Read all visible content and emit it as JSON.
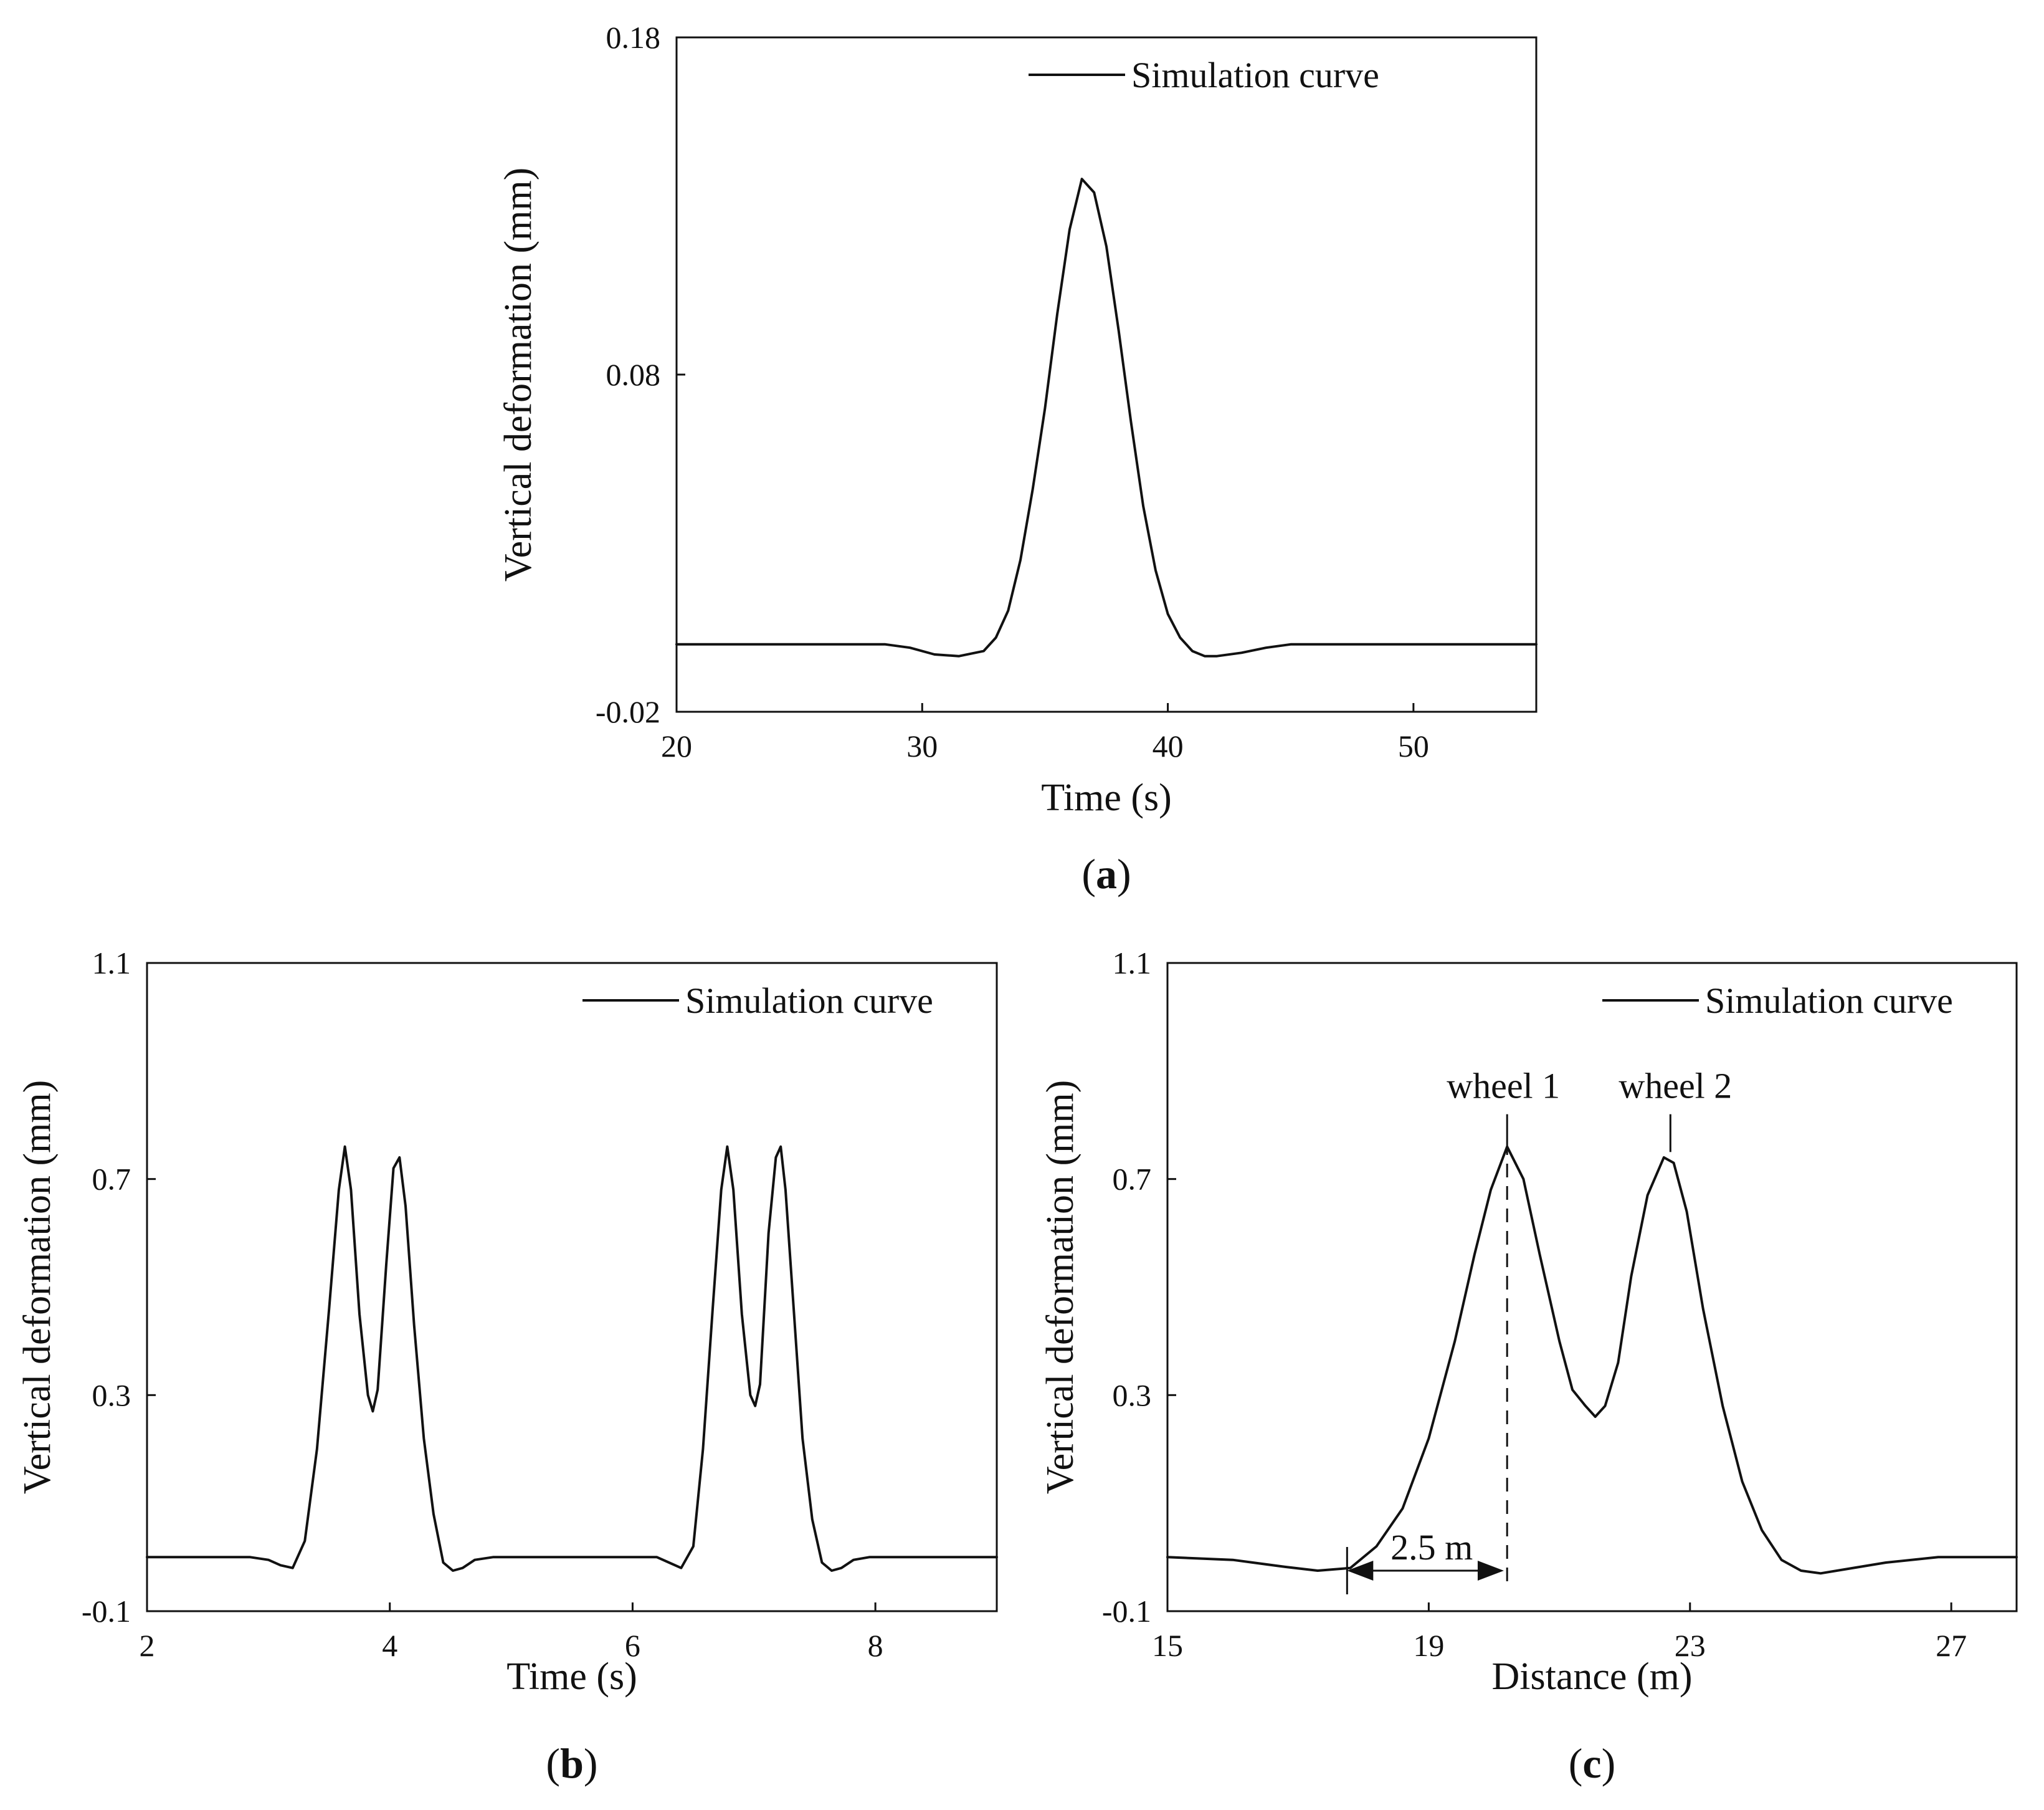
{
  "figure": {
    "panels": [
      "(a)",
      "(b)",
      "(c)"
    ]
  },
  "chart_data": [
    {
      "id": "a",
      "type": "line",
      "panel_label": "a",
      "xlabel": "Time (s)",
      "ylabel": "Vertical deformation (mm)",
      "xlim": [
        20,
        55
      ],
      "ylim": [
        -0.02,
        0.18
      ],
      "xticks": [
        "20",
        "30",
        "40",
        "50"
      ],
      "xtick_values": [
        20,
        30,
        40,
        50
      ],
      "yticks": [
        "-0.02",
        "0.08",
        "0.18"
      ],
      "ytick_values": [
        -0.02,
        0.08,
        0.18
      ],
      "legend": "top-right",
      "series": [
        {
          "name": "Simulation curve",
          "x": [
            20,
            28,
            28.5,
            29.5,
            30.5,
            31.5,
            32.5,
            33,
            33.5,
            34,
            34.5,
            35,
            35.5,
            36,
            36.5,
            37,
            37.5,
            38,
            38.5,
            39,
            39.5,
            40,
            40.5,
            41,
            41.5,
            42,
            43,
            44,
            45,
            45.5,
            55
          ],
          "y": [
            0.0,
            0.0,
            0.0,
            -0.001,
            -0.003,
            -0.0035,
            -0.002,
            0.002,
            0.01,
            0.025,
            0.046,
            0.07,
            0.098,
            0.123,
            0.138,
            0.134,
            0.118,
            0.093,
            0.066,
            0.041,
            0.022,
            0.009,
            0.002,
            -0.002,
            -0.0035,
            -0.0035,
            -0.0025,
            -0.001,
            0.0,
            0.0,
            0.0
          ]
        }
      ]
    },
    {
      "id": "b",
      "type": "line",
      "panel_label": "b",
      "xlabel": "Time (s)",
      "ylabel": "Vertical deformation (mm)",
      "xlim": [
        2,
        9
      ],
      "ylim": [
        -0.1,
        1.1
      ],
      "xticks": [
        "2",
        "4",
        "6",
        "8"
      ],
      "xtick_values": [
        2,
        4,
        6,
        8
      ],
      "yticks": [
        "-0.1",
        "0.3",
        "0.7",
        "1.1"
      ],
      "ytick_values": [
        -0.1,
        0.3,
        0.7,
        1.1
      ],
      "legend": "top-right",
      "series": [
        {
          "name": "Simulation curve",
          "x": [
            2,
            2.85,
            3.0,
            3.1,
            3.2,
            3.3,
            3.4,
            3.5,
            3.58,
            3.63,
            3.68,
            3.75,
            3.82,
            3.86,
            3.9,
            3.97,
            4.03,
            4.08,
            4.13,
            4.2,
            4.28,
            4.36,
            4.44,
            4.52,
            4.6,
            4.7,
            4.85,
            6.2,
            6.3,
            6.4,
            6.5,
            6.58,
            6.66,
            6.73,
            6.78,
            6.83,
            6.9,
            6.97,
            7.01,
            7.05,
            7.12,
            7.18,
            7.22,
            7.26,
            7.33,
            7.4,
            7.48,
            7.56,
            7.64,
            7.72,
            7.82,
            7.95,
            9
          ],
          "y": [
            0.0,
            0.0,
            -0.005,
            -0.015,
            -0.02,
            0.03,
            0.2,
            0.46,
            0.68,
            0.76,
            0.68,
            0.45,
            0.3,
            0.27,
            0.31,
            0.54,
            0.72,
            0.74,
            0.65,
            0.43,
            0.22,
            0.08,
            -0.01,
            -0.025,
            -0.02,
            -0.005,
            0.0,
            0.0,
            -0.01,
            -0.02,
            0.02,
            0.2,
            0.46,
            0.68,
            0.76,
            0.68,
            0.45,
            0.3,
            0.28,
            0.32,
            0.6,
            0.74,
            0.76,
            0.68,
            0.45,
            0.22,
            0.07,
            -0.01,
            -0.025,
            -0.02,
            -0.005,
            0.0,
            0.0
          ]
        }
      ]
    },
    {
      "id": "c",
      "type": "line",
      "panel_label": "c",
      "xlabel": "Distance (m)",
      "ylabel": "Vertical deformation (mm)",
      "xlim": [
        15,
        28
      ],
      "ylim": [
        -0.1,
        1.1
      ],
      "xticks": [
        "15",
        "19",
        "23",
        "27"
      ],
      "xtick_values": [
        15,
        19,
        23,
        27
      ],
      "yticks": [
        "-0.1",
        "0.3",
        "0.7",
        "1.1"
      ],
      "ytick_values": [
        -0.1,
        0.3,
        0.7,
        1.1
      ],
      "legend": "top-right",
      "annotations": {
        "wheel1_label": "wheel 1",
        "wheel2_label": "wheel 2",
        "wheel1_x": 20.2,
        "wheel2_x": 22.7,
        "span_label": "2.5 m",
        "span_from": 17.75,
        "span_to": 20.15,
        "span_y": -0.025
      },
      "series": [
        {
          "name": "Simulation curve",
          "x": [
            15,
            16,
            16.8,
            17.3,
            17.8,
            18.2,
            18.6,
            19.0,
            19.4,
            19.7,
            19.95,
            20.2,
            20.45,
            20.7,
            21.0,
            21.2,
            21.4,
            21.55,
            21.7,
            21.9,
            22.1,
            22.35,
            22.6,
            22.75,
            22.95,
            23.2,
            23.5,
            23.8,
            24.1,
            24.4,
            24.7,
            25.0,
            25.4,
            26.0,
            26.8,
            28
          ],
          "y": [
            0.0,
            -0.005,
            -0.018,
            -0.025,
            -0.02,
            0.02,
            0.09,
            0.22,
            0.4,
            0.56,
            0.68,
            0.76,
            0.7,
            0.56,
            0.4,
            0.31,
            0.28,
            0.26,
            0.28,
            0.36,
            0.52,
            0.67,
            0.74,
            0.73,
            0.64,
            0.46,
            0.28,
            0.14,
            0.05,
            -0.005,
            -0.025,
            -0.03,
            -0.022,
            -0.01,
            0.0,
            0.0
          ]
        }
      ]
    }
  ]
}
